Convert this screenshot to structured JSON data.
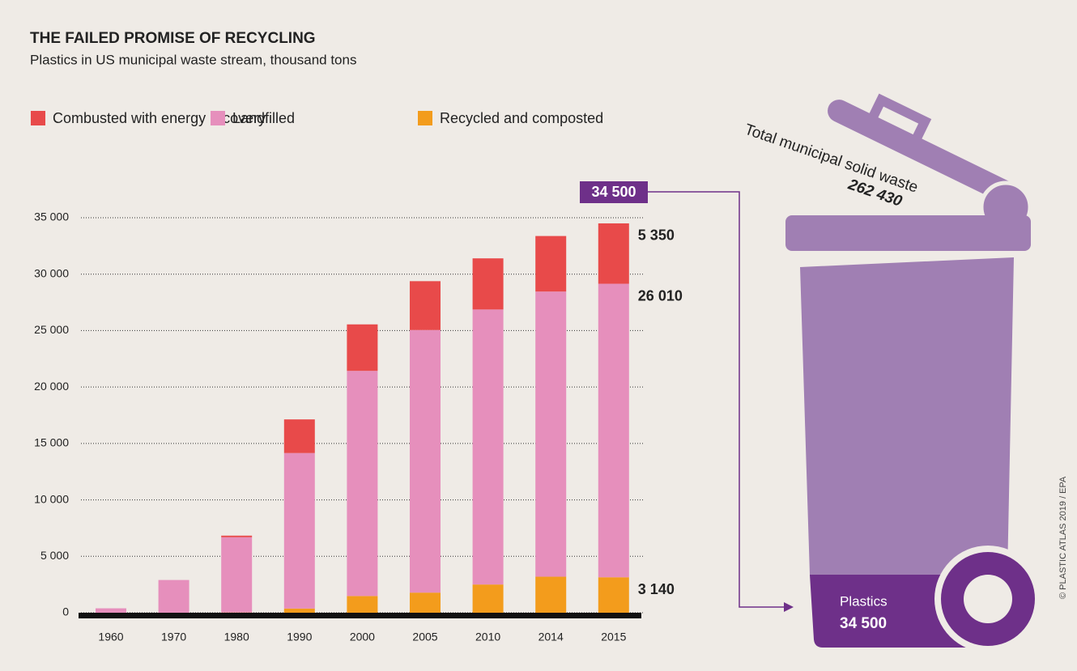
{
  "chart_data": {
    "type": "stacked_bar",
    "title": "THE FAILED PROMISE OF RECYCLING",
    "subtitle": "Plastics in US municipal waste stream, thousand tons",
    "categories": [
      "1960",
      "1970",
      "1980",
      "1990",
      "2000",
      "2005",
      "2010",
      "2014",
      "2015"
    ],
    "series": [
      {
        "name": "Recycled and composted",
        "color": "#f39c1c",
        "values": [
          0,
          0,
          20,
          370,
          1480,
          1780,
          2500,
          3190,
          3140
        ],
        "value_labels": [
          null,
          null,
          null,
          null,
          null,
          null,
          null,
          null,
          "3 140"
        ]
      },
      {
        "name": "Landfilled",
        "color": "#e68fbc",
        "values": [
          390,
          2900,
          6670,
          13780,
          19950,
          23270,
          24370,
          25270,
          26010
        ],
        "value_labels": [
          null,
          null,
          null,
          null,
          null,
          null,
          null,
          null,
          "26 010"
        ]
      },
      {
        "name": "Combusted with energy recovery",
        "color": "#e84a4a",
        "values": [
          0,
          0,
          140,
          2980,
          4120,
          4330,
          4530,
          4920,
          5350
        ],
        "value_labels": [
          null,
          null,
          null,
          null,
          null,
          null,
          null,
          null,
          "5 350"
        ]
      }
    ],
    "legend_order": [
      2,
      1,
      0
    ],
    "ylim": [
      0,
      35000
    ],
    "yticks": [
      0,
      {
        "value": 5000,
        "label": "5 000"
      },
      {
        "value": 10000,
        "label": "10 000"
      },
      {
        "value": 15000,
        "label": "15 000"
      },
      {
        "value": 20000,
        "label": "20 000"
      },
      {
        "value": 25000,
        "label": "25 000"
      },
      {
        "value": 30000,
        "label": "30 000"
      },
      {
        "value": 35000,
        "label": "35 000"
      }
    ],
    "grid": true,
    "total": {
      "value": 34500,
      "label": "34 500"
    },
    "bin": {
      "title": "Total municipal solid waste",
      "total": 262430,
      "total_label": "262 430",
      "part_name": "Plastics",
      "part": 34500,
      "part_label": "34 500"
    },
    "source": "© PLASTIC ATLAS 2019 / EPA"
  }
}
